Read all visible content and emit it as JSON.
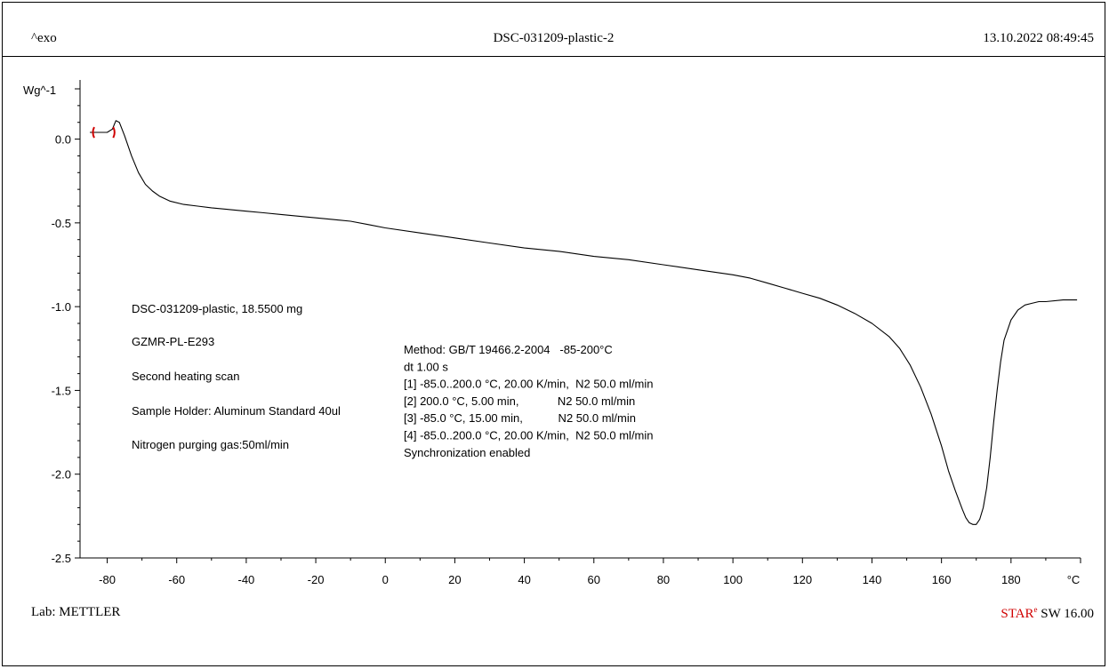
{
  "header": {
    "left": "^exo",
    "title": "DSC-031209-plastic-2",
    "datetime": "13.10.2022 08:49:45"
  },
  "footer": {
    "lab": "Lab: METTLER",
    "software_star": "STAR",
    "software_sup": "e",
    "software_rest": " SW 16.00"
  },
  "annotations": {
    "sample": [
      "DSC-031209-plastic, 18.5500 mg",
      "GZMR-PL-E293",
      "Second heating scan",
      "Sample Holder: Aluminum Standard 40ul",
      "Nitrogen purging gas:50ml/min"
    ],
    "method": [
      "Method: GB/T 19466.2-2004   -85-200°C",
      "dt 1.00 s",
      "[1] -85.0..200.0 °C, 20.00 K/min,  N2 50.0 ml/min",
      "[2] 200.0 °C, 5.00 min,            N2 50.0 ml/min",
      "[3] -85.0 °C, 15.00 min,           N2 50.0 ml/min",
      "[4] -85.0..200.0 °C, 20.00 K/min,  N2 50.0 ml/min",
      "Synchronization enabled"
    ]
  },
  "colors": {
    "curve": "#000000",
    "marker": "#d00000",
    "axis": "#000000"
  },
  "chart_data": {
    "type": "line",
    "title": "DSC-031209-plastic-2",
    "xlabel": "°C",
    "ylabel": "Wg^-1",
    "xlim": [
      -85,
      200
    ],
    "ylim": [
      -2.5,
      0.3
    ],
    "x_ticks": [
      -80,
      -60,
      -40,
      -20,
      0,
      20,
      40,
      60,
      80,
      100,
      120,
      140,
      160,
      180
    ],
    "y_ticks": [
      0.0,
      -0.5,
      -1.0,
      -1.5,
      -2.0,
      -2.5
    ],
    "x_tick_labels": [
      "-80",
      "-60",
      "-40",
      "-20",
      "0",
      "20",
      "40",
      "60",
      "80",
      "100",
      "120",
      "140",
      "160",
      "180"
    ],
    "y_tick_labels": [
      "0.0",
      "-0.5",
      "-1.0",
      "-1.5",
      "-2.0",
      "-2.5"
    ],
    "grid": false,
    "integration_markers_x": [
      -84.5,
      -77.5
    ],
    "series": [
      {
        "x": [
          -85,
          -80,
          -78.5,
          -77.5,
          -76.5,
          -75,
          -73,
          -71,
          -69,
          -67,
          -65,
          -62,
          -58,
          -54,
          -50,
          -45,
          -40,
          -35,
          -30,
          -25,
          -20,
          -15,
          -10,
          -5,
          0,
          10,
          20,
          30,
          40,
          50,
          60,
          70,
          80,
          90,
          100,
          105,
          110,
          115,
          120,
          125,
          130,
          135,
          140,
          145,
          148,
          151,
          154,
          157,
          160,
          162,
          164,
          166,
          167,
          168,
          169,
          170,
          171,
          172,
          173,
          174,
          175,
          176,
          177,
          178,
          180,
          182,
          184,
          186,
          188,
          190,
          195,
          199
        ],
        "y": [
          0.04,
          0.04,
          0.06,
          0.11,
          0.1,
          0.02,
          -0.1,
          -0.2,
          -0.27,
          -0.31,
          -0.34,
          -0.37,
          -0.39,
          -0.4,
          -0.41,
          -0.42,
          -0.43,
          -0.44,
          -0.45,
          -0.46,
          -0.47,
          -0.48,
          -0.49,
          -0.51,
          -0.53,
          -0.56,
          -0.59,
          -0.62,
          -0.65,
          -0.67,
          -0.7,
          -0.72,
          -0.75,
          -0.78,
          -0.81,
          -0.83,
          -0.86,
          -0.89,
          -0.92,
          -0.95,
          -0.99,
          -1.04,
          -1.1,
          -1.18,
          -1.25,
          -1.35,
          -1.48,
          -1.64,
          -1.83,
          -1.98,
          -2.1,
          -2.21,
          -2.26,
          -2.29,
          -2.3,
          -2.3,
          -2.27,
          -2.2,
          -2.08,
          -1.9,
          -1.69,
          -1.5,
          -1.33,
          -1.2,
          -1.08,
          -1.02,
          -0.99,
          -0.98,
          -0.97,
          -0.97,
          -0.96,
          -0.96
        ]
      }
    ]
  }
}
